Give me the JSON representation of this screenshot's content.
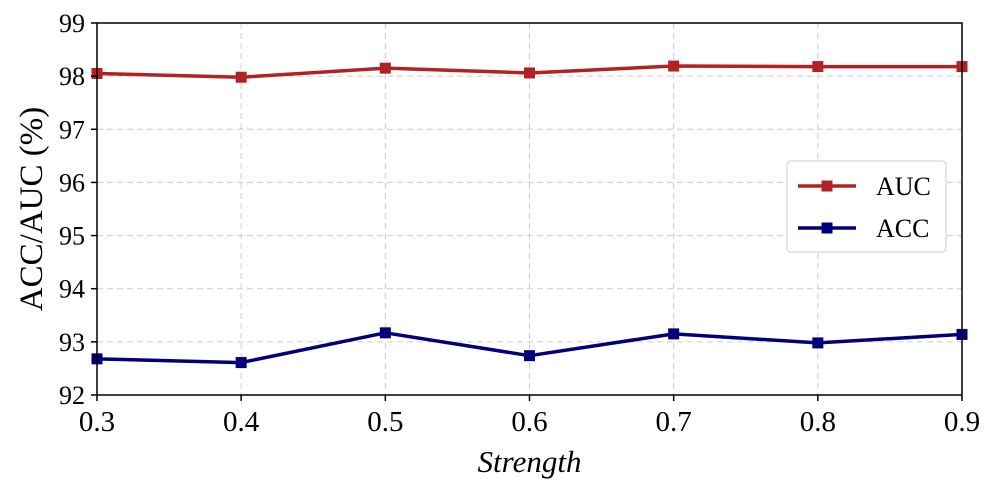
{
  "chart_data": {
    "type": "line",
    "title": "",
    "xlabel": "Strength",
    "ylabel": "ACC/AUC (%)",
    "xlim": [
      0.3,
      0.9
    ],
    "ylim": [
      92,
      99
    ],
    "x": [
      0.3,
      0.4,
      0.5,
      0.6,
      0.7,
      0.8,
      0.9
    ],
    "x_ticks": [
      "0.3",
      "0.4",
      "0.5",
      "0.6",
      "0.7",
      "0.8",
      "0.9"
    ],
    "y_ticks": [
      "92",
      "93",
      "94",
      "95",
      "96",
      "97",
      "98",
      "99"
    ],
    "grid": true,
    "legend_position": "center-right",
    "series": [
      {
        "name": "AUC",
        "color": "#b22222",
        "marker": "square",
        "values": [
          98.05,
          97.98,
          98.15,
          98.06,
          98.19,
          98.18,
          98.18
        ]
      },
      {
        "name": "ACC",
        "color": "#00007a",
        "marker": "square",
        "values": [
          92.68,
          92.61,
          93.17,
          92.74,
          93.15,
          92.98,
          93.14
        ]
      }
    ]
  }
}
